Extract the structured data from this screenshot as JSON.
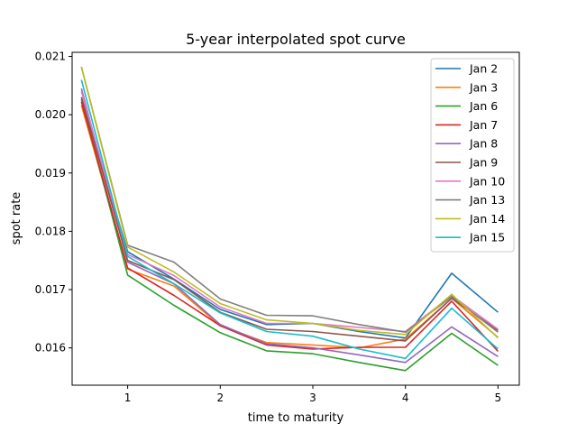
{
  "chart_data": {
    "type": "line",
    "title": "5-year interpolated spot curve",
    "xlabel": "time to maturity",
    "ylabel": "spot rate",
    "xlim": [
      0.4,
      5.23
    ],
    "ylim": [
      0.01536,
      0.02107
    ],
    "x_ticks": [
      1,
      2,
      3,
      4,
      5
    ],
    "x_tick_labels": [
      "1",
      "2",
      "3",
      "4",
      "5"
    ],
    "y_ticks": [
      0.016,
      0.017,
      0.018,
      0.019,
      0.02,
      0.021
    ],
    "y_tick_labels": [
      "0.016",
      "0.017",
      "0.018",
      "0.019",
      "0.020",
      "0.021"
    ],
    "grid": false,
    "legend_position": "upper right",
    "x": [
      0.5,
      1.0,
      1.5,
      2.0,
      2.5,
      3.0,
      3.5,
      4.0,
      4.5,
      5.0
    ],
    "series": [
      {
        "name": "Jan 2",
        "color": "#1f77b4",
        "values": [
          0.0203,
          0.01765,
          0.01718,
          0.01666,
          0.0164,
          0.01642,
          0.01628,
          0.01617,
          0.01728,
          0.01661
        ]
      },
      {
        "name": "Jan 3",
        "color": "#ff7f0e",
        "values": [
          0.02016,
          0.01735,
          0.01706,
          0.01638,
          0.01609,
          0.01605,
          0.016,
          0.01615,
          0.01685,
          0.01618
        ]
      },
      {
        "name": "Jan 6",
        "color": "#2ca02c",
        "values": [
          0.02026,
          0.01725,
          0.01673,
          0.01626,
          0.01595,
          0.0159,
          0.01575,
          0.01561,
          0.01625,
          0.0157
        ]
      },
      {
        "name": "Jan 7",
        "color": "#d62728",
        "values": [
          0.02022,
          0.01737,
          0.0169,
          0.01638,
          0.01605,
          0.01598,
          0.01601,
          0.01601,
          0.0168,
          0.01594
        ]
      },
      {
        "name": "Jan 8",
        "color": "#9467bd",
        "values": [
          0.02045,
          0.01747,
          0.0171,
          0.0164,
          0.01607,
          0.016,
          0.01588,
          0.01575,
          0.01636,
          0.01585
        ]
      },
      {
        "name": "Jan 9",
        "color": "#8c564b",
        "values": [
          0.0203,
          0.0175,
          0.01717,
          0.01661,
          0.01632,
          0.01628,
          0.0162,
          0.01612,
          0.01685,
          0.0163
        ]
      },
      {
        "name": "Jan 10",
        "color": "#e377c2",
        "values": [
          0.0204,
          0.0176,
          0.01724,
          0.0167,
          0.01642,
          0.01642,
          0.01635,
          0.01628,
          0.0169,
          0.01632
        ]
      },
      {
        "name": "Jan 13",
        "color": "#7f7f7f",
        "values": [
          0.02082,
          0.01776,
          0.01747,
          0.01684,
          0.01656,
          0.01655,
          0.0164,
          0.01627,
          0.01688,
          0.01627
        ]
      },
      {
        "name": "Jan 14",
        "color": "#bcbd22",
        "values": [
          0.02082,
          0.01773,
          0.0173,
          0.01676,
          0.01648,
          0.01642,
          0.0163,
          0.01623,
          0.01692,
          0.01617
        ]
      },
      {
        "name": "Jan 15",
        "color": "#17becf",
        "values": [
          0.0206,
          0.01757,
          0.0171,
          0.0166,
          0.01628,
          0.0162,
          0.01598,
          0.01582,
          0.01668,
          0.01598
        ]
      }
    ]
  }
}
